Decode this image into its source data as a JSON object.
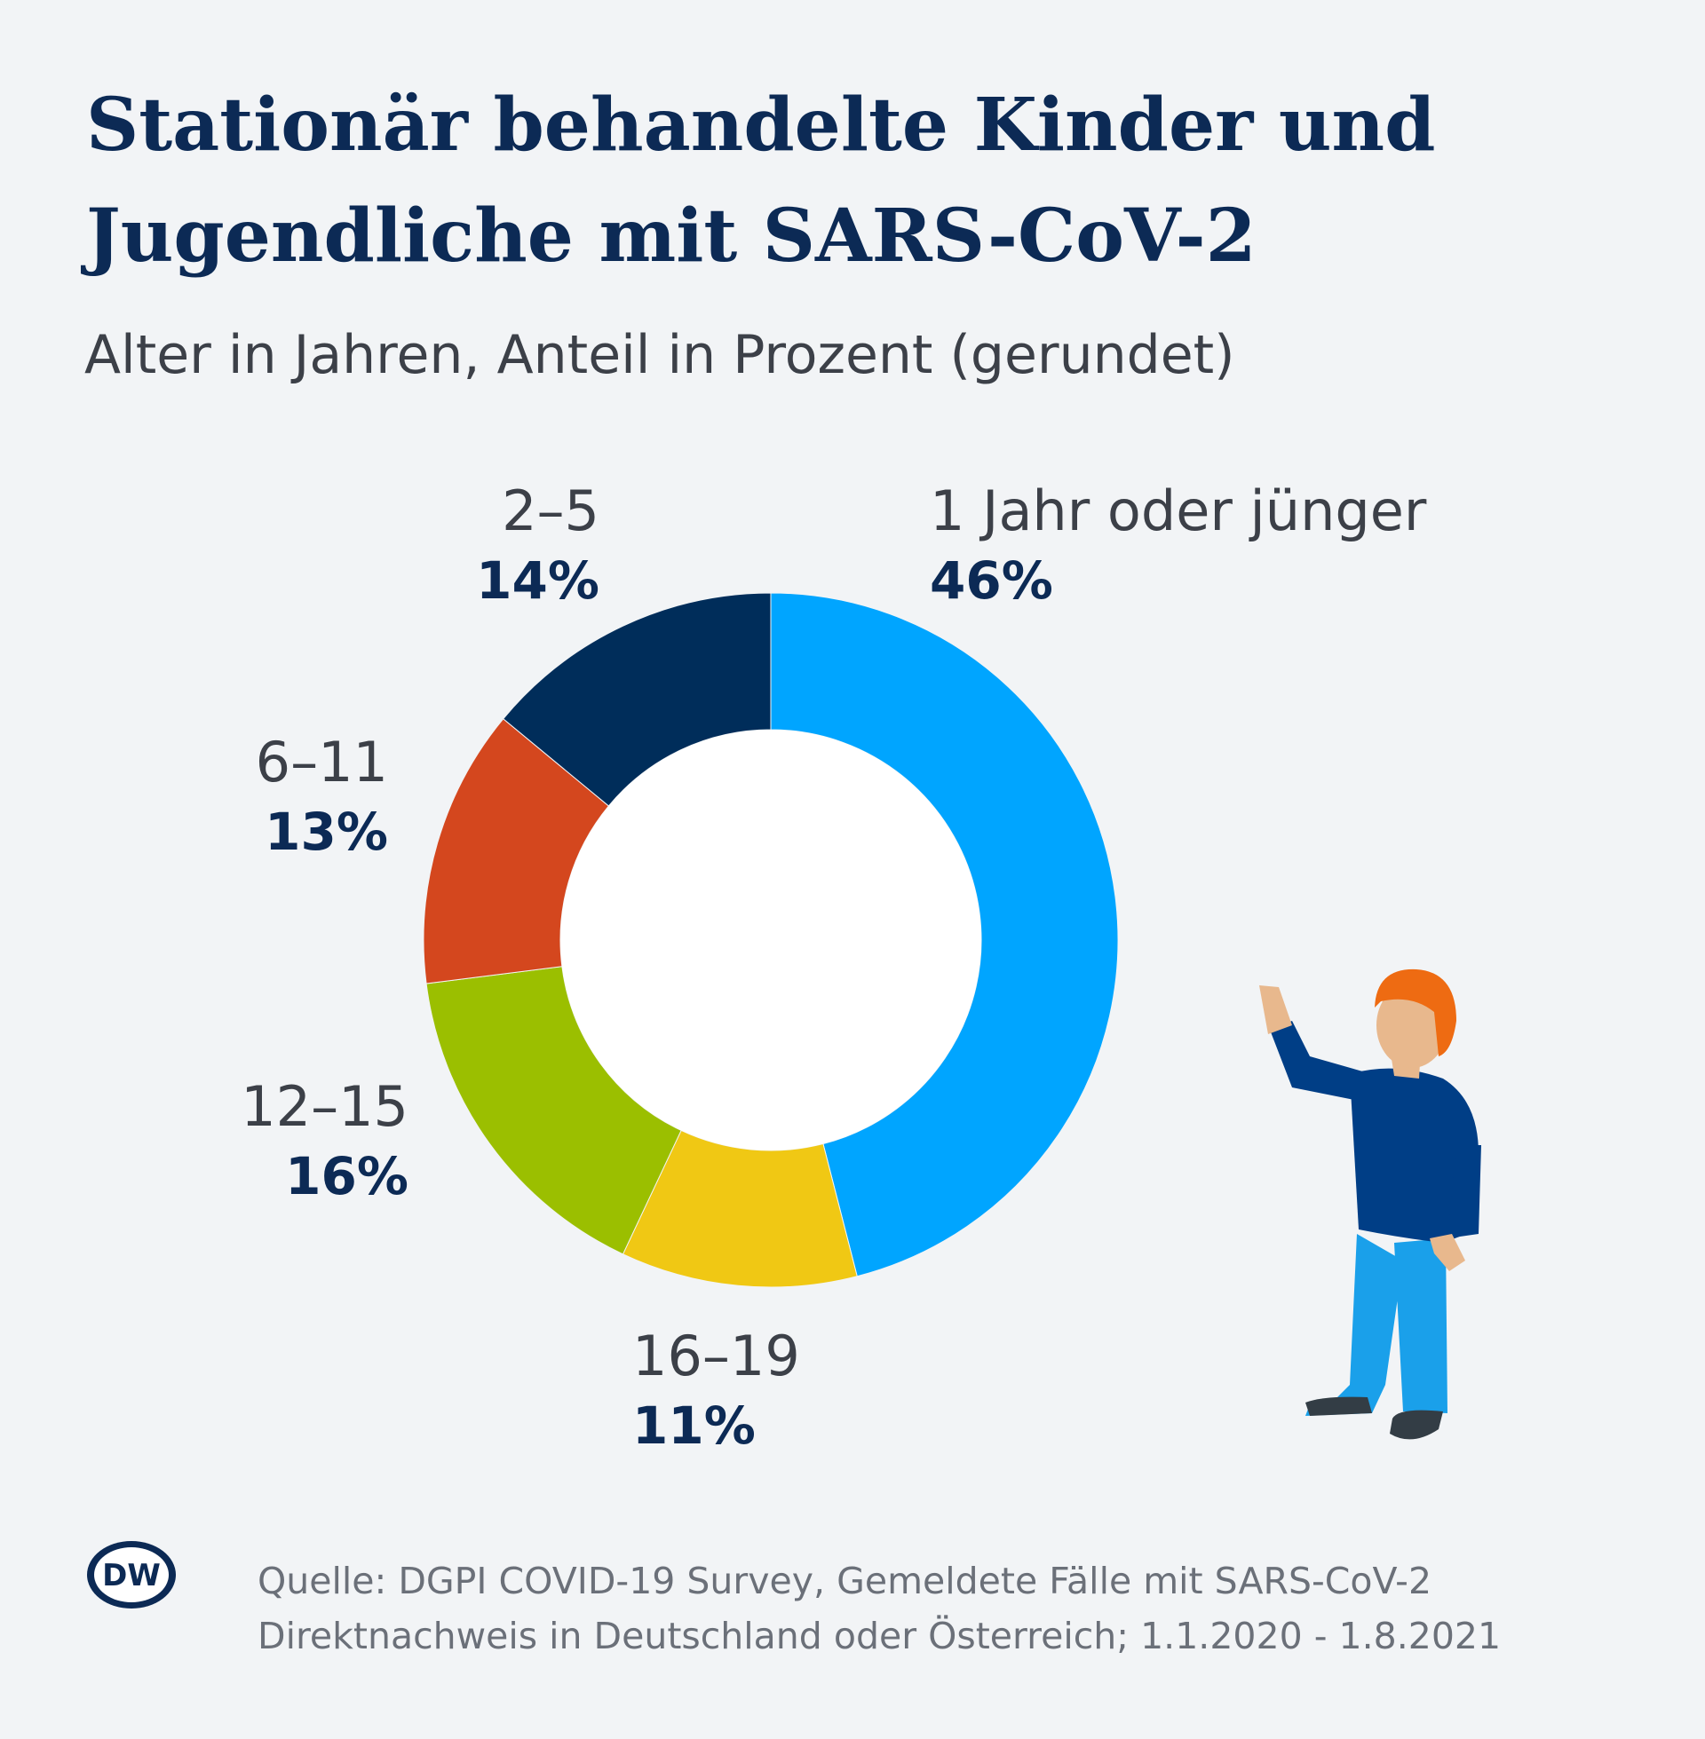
{
  "chart_data": {
    "type": "donut",
    "title": [
      "Stationär behandelte Kinder und",
      "Jugendliche mit SARS-CoV-2"
    ],
    "subtitle": "Alter in Jahren, Anteil in Prozent (gerundet)",
    "categories": [
      "1 Jahr oder jünger",
      "16–19",
      "12–15",
      "6–11",
      "2–5"
    ],
    "values": [
      46,
      11,
      16,
      13,
      14
    ],
    "value_labels": [
      "46%",
      "11%",
      "16%",
      "13%",
      "14%"
    ],
    "colors": [
      "#00a5ff",
      "#f0c814",
      "#9bbf00",
      "#d4471e",
      "#002d5a"
    ],
    "source": [
      "Quelle: DGPI COVID-19 Survey, Gemeldete Fälle mit SARS-CoV-2",
      "Direktnachweis in Deutschland oder Österreich; 1.1.2020 - 1.8.2021"
    ],
    "logo": "DW"
  }
}
